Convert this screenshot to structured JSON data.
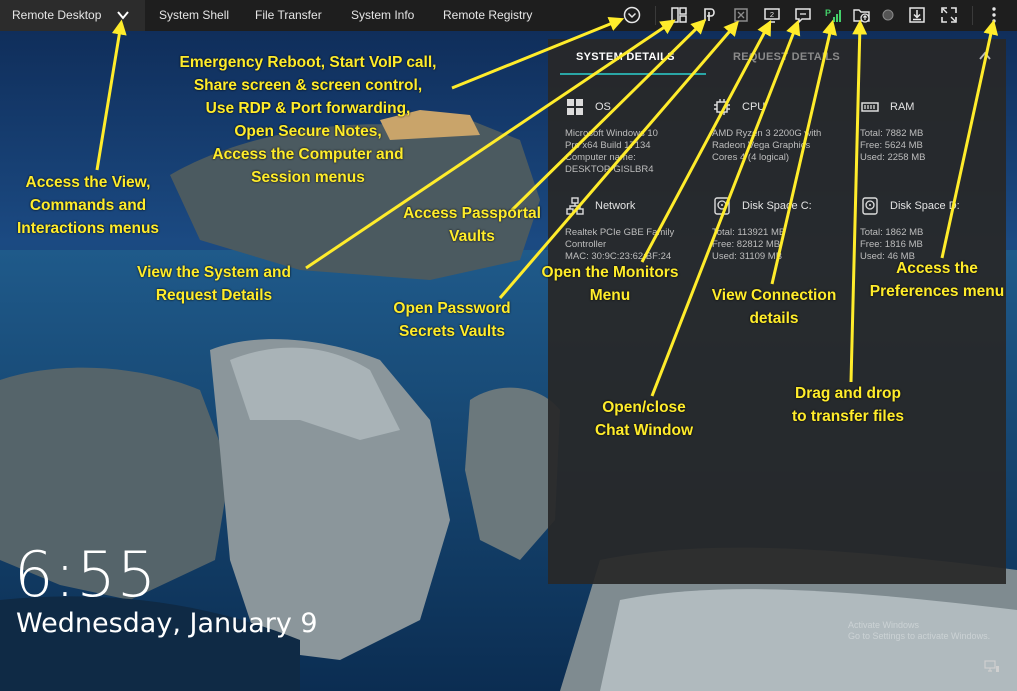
{
  "topbar": {
    "tabs": [
      {
        "label": "Remote Desktop"
      },
      {
        "label": "System Shell"
      },
      {
        "label": "File Transfer"
      },
      {
        "label": "System Info"
      },
      {
        "label": "Remote Registry"
      }
    ],
    "icons": [
      "chevron-down-icon",
      "circle-menu-icon",
      "monitors-icon",
      "passportal-icon",
      "password-vault-icon",
      "chat-icon",
      "connection-details-icon",
      "signal-icon",
      "file-upload-icon",
      "record-icon",
      "download-icon",
      "fullscreen-icon",
      "preferences-icon"
    ],
    "signal_letter": "P",
    "monitor_number": "2"
  },
  "lockscreen": {
    "time": "6:55",
    "date": "Wednesday, January 9"
  },
  "system_panel": {
    "tabs": [
      "SYSTEM DETAILS",
      "REQUEST DETAILS"
    ],
    "accent_color": "#2aa6a6",
    "cards": [
      {
        "title": "OS",
        "lines": [
          "Microsoft Windows 10",
          "Pro x64 Build 17134",
          "Computer name:",
          "DESKTOP-GISLBR4"
        ]
      },
      {
        "title": "CPU",
        "lines": [
          "AMD Ryzen 3 2200G with",
          "Radeon Vega Graphics",
          "Cores 4 (4 logical)"
        ]
      },
      {
        "title": "RAM",
        "lines": [
          "Total: 7882 MB",
          "Free: 5624 MB",
          "Used: 2258 MB"
        ]
      },
      {
        "title": "Network",
        "lines": [
          "Realtek PCIe GBE Family",
          "Controller",
          "MAC: 30:9C:23:62:BF:24"
        ]
      },
      {
        "title": "Disk Space C:",
        "lines": [
          "Total: 113921 MB",
          "Free: 82812 MB",
          "Used: 31109 MB"
        ]
      },
      {
        "title": "Disk Space D:",
        "lines": [
          "Total: 1862 MB",
          "Free: 1816 MB",
          "Used: 46 MB"
        ]
      }
    ]
  },
  "annotations": {
    "color": "#ffec2b",
    "view_menus": [
      "Access the View,",
      "Commands and",
      "Interactions menus"
    ],
    "emergency": [
      "Emergency Reboot, Start VoIP call,",
      "Share screen & screen control,",
      "Use RDP & Port forwarding,",
      "Open Secure Notes,",
      "Access the Computer and",
      "Session menus"
    ],
    "passportal": [
      "Access Passportal",
      "Vaults"
    ],
    "system_details": [
      "View the System and",
      "Request Details"
    ],
    "monitors": [
      "Open the Monitors",
      "Menu"
    ],
    "password": [
      "Open Password",
      "Secrets Vaults"
    ],
    "connection": [
      "View Connection",
      "details"
    ],
    "preferences": [
      "Access the",
      "Preferences menu"
    ],
    "chat": [
      "Open/close",
      "Chat Window"
    ],
    "drag_drop": [
      "Drag and drop",
      "to transfer files"
    ]
  },
  "watermark": {
    "title": "Activate Windows",
    "subtitle": "Go to Settings to activate Windows."
  }
}
